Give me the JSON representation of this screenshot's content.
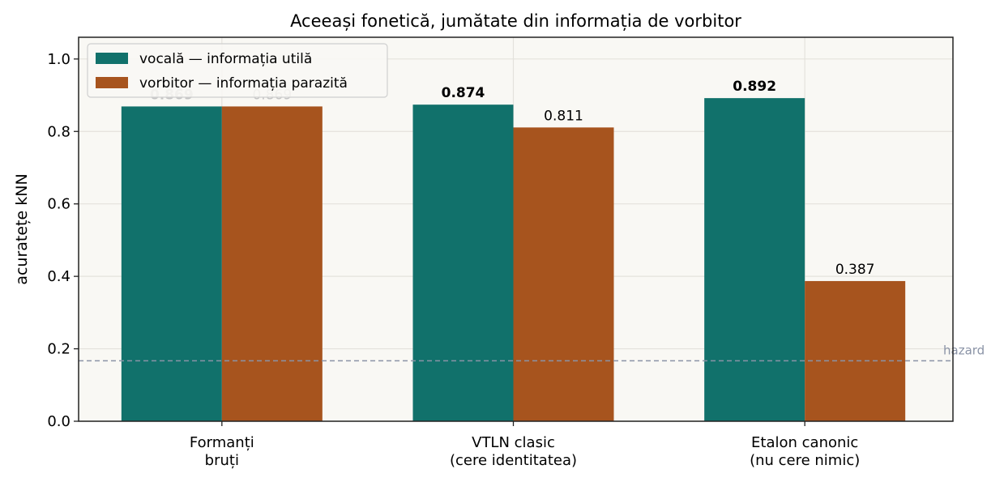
{
  "chart_data": {
    "type": "bar",
    "title": "Aceeași fonetică, jumătate din informația de vorbitor",
    "xlabel": "",
    "ylabel": "acuratețe kNN",
    "ylim": [
      0,
      1.06
    ],
    "yticks": [
      "0.0",
      "0.2",
      "0.4",
      "0.6",
      "0.8",
      "1.0"
    ],
    "categories": [
      [
        "Formanți",
        "bruți"
      ],
      [
        "VTLN clasic",
        "(cere identitatea)"
      ],
      [
        "Etalon canonic",
        "(nu cere nimic)"
      ]
    ],
    "series": [
      {
        "name": "vocală — informația utilă",
        "color": "#11716b",
        "values": [
          0.869,
          0.874,
          0.892
        ],
        "labels": [
          "0.869",
          "0.874",
          "0.892"
        ],
        "label_bold": true
      },
      {
        "name": "vorbitor — informația parazită",
        "color": "#a7541e",
        "values": [
          0.869,
          0.811,
          0.387
        ],
        "labels": [
          "0.869",
          "0.811",
          "0.387"
        ],
        "label_bold": false
      }
    ],
    "label_faded": [
      true,
      false,
      false
    ],
    "reference_line": {
      "label": "hazard",
      "value": 0.167,
      "color": "#8a93a6"
    },
    "grid": true,
    "legend_position": "top-left",
    "plot_background": "#f9f8f4"
  }
}
